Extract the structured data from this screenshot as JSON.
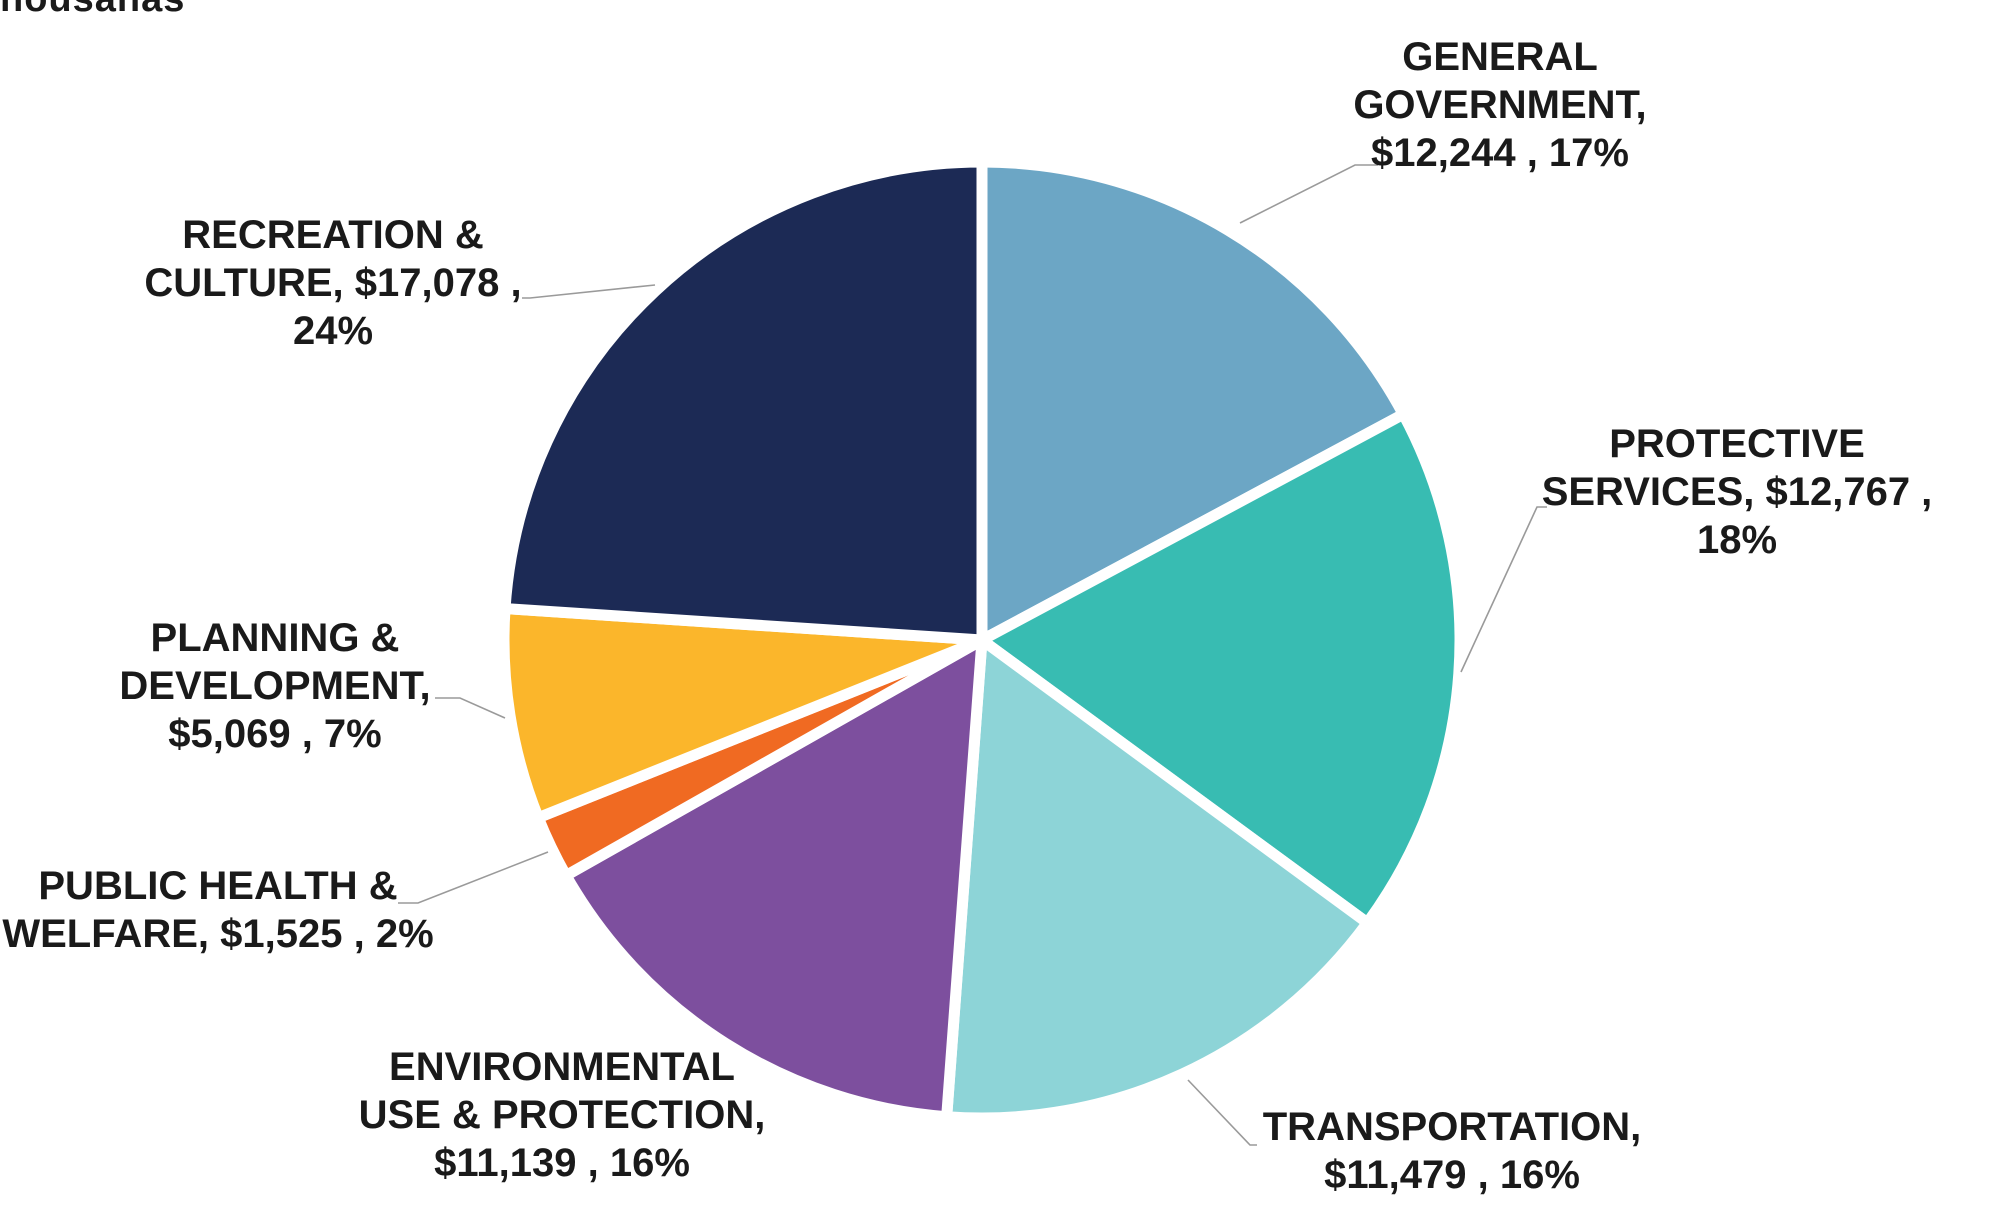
{
  "chart_data": {
    "type": "pie",
    "title_fragment": "nousanas",
    "start_angle_deg": 0,
    "direction": "clockwise",
    "slices": [
      {
        "key": "general-government",
        "name": "GENERAL GOVERNMENT",
        "value": 12244,
        "percent": 17,
        "color": "#6CA6C5",
        "label_lines": [
          "GENERAL",
          "GOVERNMENT,",
          "$12,244 , 17%"
        ]
      },
      {
        "key": "protective-services",
        "name": "PROTECTIVE SERVICES",
        "value": 12767,
        "percent": 18,
        "color": "#38BCB2",
        "label_lines": [
          "PROTECTIVE",
          "SERVICES, $12,767 ,",
          "18%"
        ]
      },
      {
        "key": "transportation",
        "name": "TRANSPORTATION",
        "value": 11479,
        "percent": 16,
        "color": "#8DD4D7",
        "label_lines": [
          "TRANSPORTATION,",
          "$11,479 , 16%"
        ]
      },
      {
        "key": "environmental",
        "name": "ENVIRONMENTAL USE & PROTECTION",
        "value": 11139,
        "percent": 16,
        "color": "#7D4F9E",
        "label_lines": [
          "ENVIRONMENTAL",
          "USE & PROTECTION,",
          "$11,139 , 16%"
        ]
      },
      {
        "key": "public-health",
        "name": "PUBLIC HEALTH & WELFARE",
        "value": 1525,
        "percent": 2,
        "color": "#F06A22",
        "label_lines": [
          "PUBLIC HEALTH &",
          "WELFARE, $1,525 , 2%"
        ]
      },
      {
        "key": "planning",
        "name": "PLANNING & DEVELOPMENT",
        "value": 5069,
        "percent": 7,
        "color": "#FBB62B",
        "label_lines": [
          "PLANNING &",
          "DEVELOPMENT,",
          "$5,069 , 7%"
        ]
      },
      {
        "key": "recreation",
        "name": "RECREATION & CULTURE",
        "value": 17078,
        "percent": 24,
        "color": "#1C2A55",
        "label_lines": [
          "RECREATION &",
          "CULTURE, $17,078 ,",
          "24%"
        ]
      }
    ]
  }
}
